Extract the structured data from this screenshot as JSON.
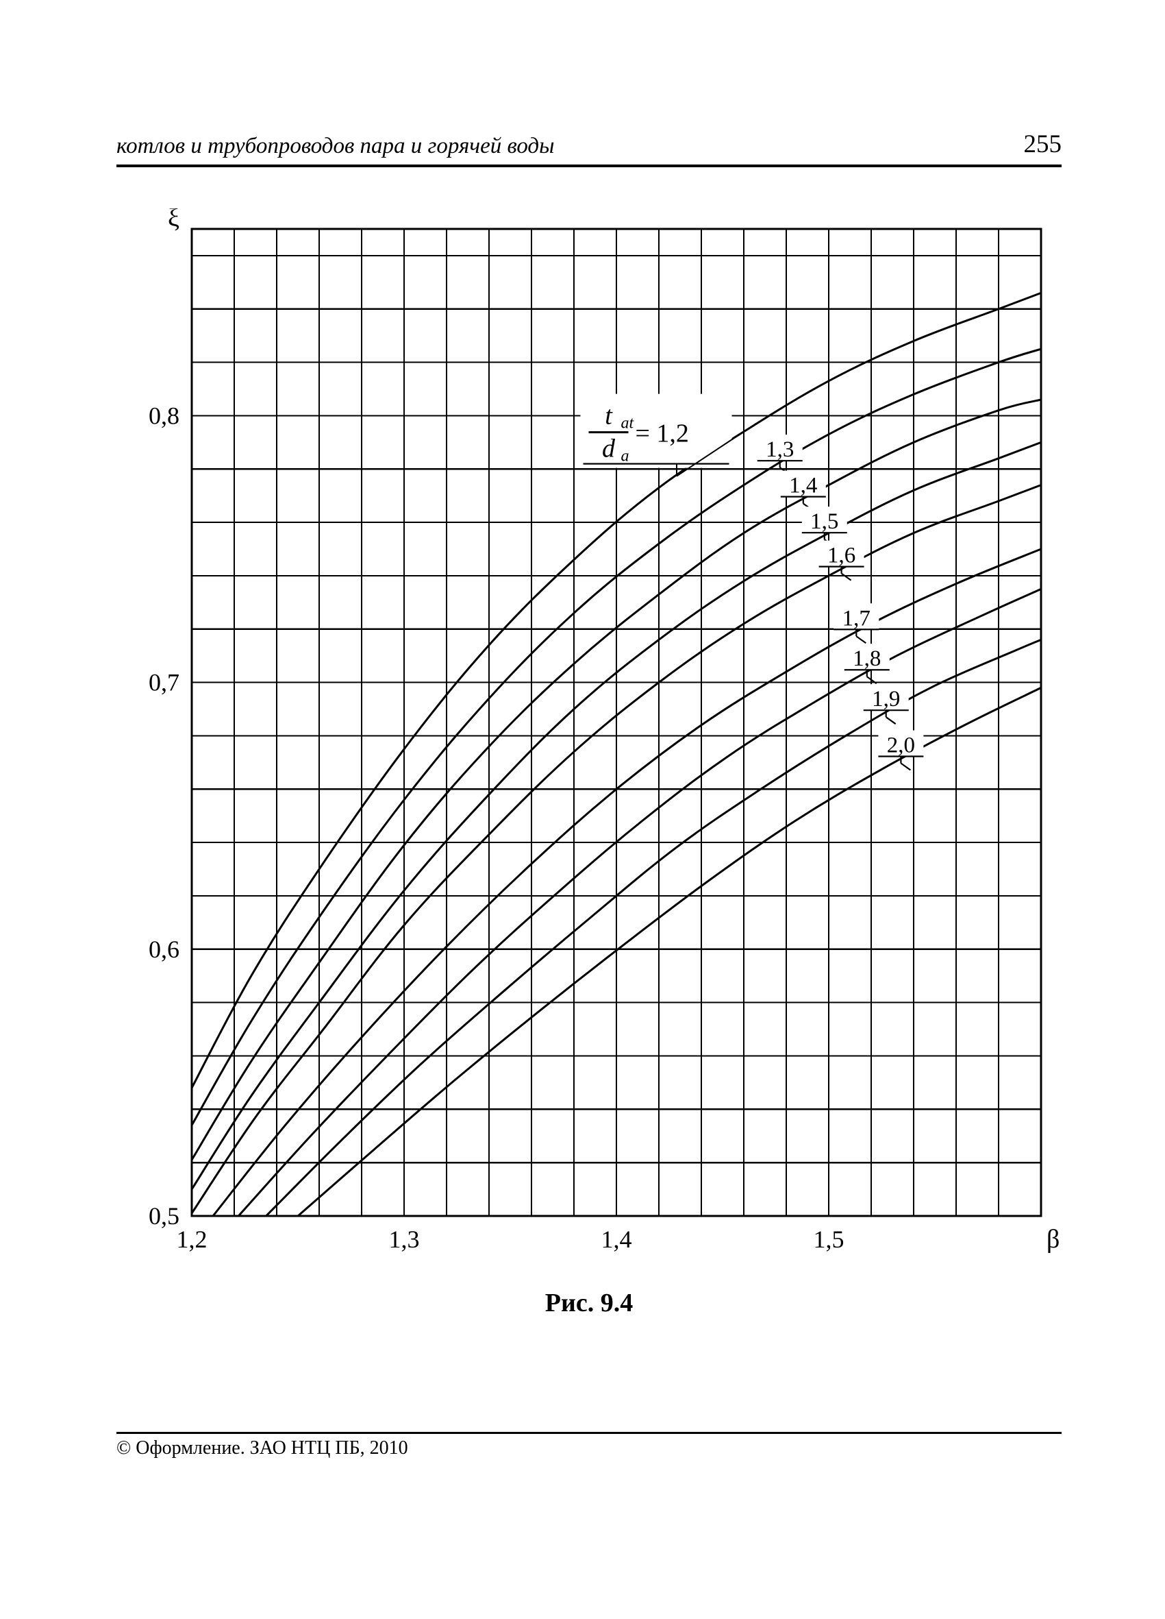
{
  "header": {
    "running_title": "котлов и трубопроводов пара и горячей воды",
    "page_number": "255"
  },
  "footer": {
    "copyright": "©  Оформление. ЗАО НТЦ ПБ, 2010"
  },
  "chart": {
    "type": "line",
    "caption": "Рис. 9.4",
    "y_axis": {
      "symbol": "ξ",
      "min": 0.5,
      "max": 0.87,
      "ticks": [
        {
          "v": 0.5,
          "label": "0,5"
        },
        {
          "v": 0.6,
          "label": "0,6"
        },
        {
          "v": 0.7,
          "label": "0,7"
        },
        {
          "v": 0.8,
          "label": "0,8"
        }
      ],
      "minor_step": 0.02
    },
    "x_axis": {
      "symbol": "β",
      "min": 1.2,
      "max": 1.6,
      "ticks": [
        {
          "v": 1.2,
          "label": "1,2"
        },
        {
          "v": 1.3,
          "label": "1,3"
        },
        {
          "v": 1.4,
          "label": "1,4"
        },
        {
          "v": 1.5,
          "label": "1,5"
        }
      ],
      "minor_step": 0.02
    },
    "parameter_label": {
      "numer": "t",
      "numer_sub": "at",
      "denom": "d",
      "denom_sub": "a",
      "eq": " = 1,2"
    },
    "parameter_label_at_beta": 1.415,
    "series_color": "#000000",
    "background": "#ffffff",
    "curves": [
      {
        "param": "1,2",
        "label_at_beta": 1.46,
        "pts": [
          [
            1.2,
            0.548
          ],
          [
            1.228,
            0.59
          ],
          [
            1.26,
            0.63
          ],
          [
            1.3,
            0.675
          ],
          [
            1.34,
            0.714
          ],
          [
            1.38,
            0.746
          ],
          [
            1.42,
            0.773
          ],
          [
            1.46,
            0.794
          ],
          [
            1.5,
            0.813
          ],
          [
            1.54,
            0.828
          ],
          [
            1.58,
            0.84
          ],
          [
            1.6,
            0.846
          ]
        ]
      },
      {
        "param": "1,3",
        "label_at_beta": 1.477,
        "pts": [
          [
            1.2,
            0.534
          ],
          [
            1.228,
            0.573
          ],
          [
            1.26,
            0.612
          ],
          [
            1.3,
            0.656
          ],
          [
            1.34,
            0.694
          ],
          [
            1.38,
            0.726
          ],
          [
            1.42,
            0.752
          ],
          [
            1.46,
            0.774
          ],
          [
            1.5,
            0.793
          ],
          [
            1.54,
            0.808
          ],
          [
            1.58,
            0.82
          ],
          [
            1.6,
            0.825
          ]
        ]
      },
      {
        "param": "1,4",
        "label_at_beta": 1.488,
        "pts": [
          [
            1.2,
            0.521
          ],
          [
            1.228,
            0.558
          ],
          [
            1.26,
            0.595
          ],
          [
            1.3,
            0.639
          ],
          [
            1.34,
            0.676
          ],
          [
            1.38,
            0.707
          ],
          [
            1.42,
            0.733
          ],
          [
            1.46,
            0.756
          ],
          [
            1.5,
            0.774
          ],
          [
            1.54,
            0.79
          ],
          [
            1.58,
            0.802
          ],
          [
            1.6,
            0.806
          ]
        ]
      },
      {
        "param": "1,5",
        "label_at_beta": 1.498,
        "pts": [
          [
            1.2,
            0.51
          ],
          [
            1.228,
            0.545
          ],
          [
            1.26,
            0.58
          ],
          [
            1.3,
            0.622
          ],
          [
            1.34,
            0.658
          ],
          [
            1.38,
            0.69
          ],
          [
            1.42,
            0.716
          ],
          [
            1.46,
            0.738
          ],
          [
            1.5,
            0.756
          ],
          [
            1.54,
            0.772
          ],
          [
            1.58,
            0.784
          ],
          [
            1.6,
            0.79
          ]
        ]
      },
      {
        "param": "1,6",
        "label_at_beta": 1.506,
        "pts": [
          [
            1.2,
            0.501
          ],
          [
            1.23,
            0.537
          ],
          [
            1.262,
            0.57
          ],
          [
            1.3,
            0.609
          ],
          [
            1.34,
            0.643
          ],
          [
            1.38,
            0.674
          ],
          [
            1.42,
            0.7
          ],
          [
            1.46,
            0.722
          ],
          [
            1.5,
            0.74
          ],
          [
            1.54,
            0.756
          ],
          [
            1.58,
            0.768
          ],
          [
            1.6,
            0.774
          ]
        ]
      },
      {
        "param": "1,7",
        "label_at_beta": 1.513,
        "pts": [
          [
            1.21,
            0.5
          ],
          [
            1.244,
            0.534
          ],
          [
            1.28,
            0.567
          ],
          [
            1.32,
            0.601
          ],
          [
            1.36,
            0.632
          ],
          [
            1.4,
            0.66
          ],
          [
            1.44,
            0.684
          ],
          [
            1.48,
            0.704
          ],
          [
            1.52,
            0.722
          ],
          [
            1.56,
            0.737
          ],
          [
            1.6,
            0.75
          ]
        ]
      },
      {
        "param": "1,8",
        "label_at_beta": 1.518,
        "pts": [
          [
            1.222,
            0.5
          ],
          [
            1.256,
            0.53
          ],
          [
            1.292,
            0.56
          ],
          [
            1.332,
            0.592
          ],
          [
            1.372,
            0.621
          ],
          [
            1.412,
            0.648
          ],
          [
            1.452,
            0.672
          ],
          [
            1.492,
            0.692
          ],
          [
            1.532,
            0.71
          ],
          [
            1.572,
            0.725
          ],
          [
            1.6,
            0.735
          ]
        ]
      },
      {
        "param": "1,9",
        "label_at_beta": 1.527,
        "pts": [
          [
            1.235,
            0.5
          ],
          [
            1.27,
            0.528
          ],
          [
            1.308,
            0.557
          ],
          [
            1.348,
            0.585
          ],
          [
            1.388,
            0.612
          ],
          [
            1.428,
            0.638
          ],
          [
            1.468,
            0.66
          ],
          [
            1.508,
            0.68
          ],
          [
            1.548,
            0.698
          ],
          [
            1.588,
            0.712
          ],
          [
            1.6,
            0.716
          ]
        ]
      },
      {
        "param": "2,0",
        "label_at_beta": 1.534,
        "pts": [
          [
            1.25,
            0.5
          ],
          [
            1.286,
            0.525
          ],
          [
            1.324,
            0.551
          ],
          [
            1.364,
            0.577
          ],
          [
            1.404,
            0.602
          ],
          [
            1.444,
            0.626
          ],
          [
            1.484,
            0.648
          ],
          [
            1.524,
            0.667
          ],
          [
            1.564,
            0.684
          ],
          [
            1.6,
            0.698
          ]
        ]
      }
    ]
  }
}
